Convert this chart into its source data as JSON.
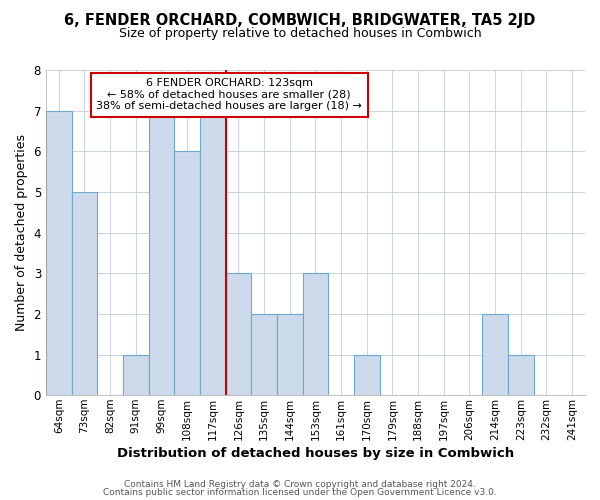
{
  "title": "6, FENDER ORCHARD, COMBWICH, BRIDGWATER, TA5 2JD",
  "subtitle": "Size of property relative to detached houses in Combwich",
  "xlabel": "Distribution of detached houses by size in Combwich",
  "ylabel": "Number of detached properties",
  "bar_labels": [
    "64sqm",
    "73sqm",
    "82sqm",
    "91sqm",
    "99sqm",
    "108sqm",
    "117sqm",
    "126sqm",
    "135sqm",
    "144sqm",
    "153sqm",
    "161sqm",
    "170sqm",
    "179sqm",
    "188sqm",
    "197sqm",
    "206sqm",
    "214sqm",
    "223sqm",
    "232sqm",
    "241sqm"
  ],
  "bar_heights": [
    7,
    5,
    0,
    1,
    7,
    6,
    7,
    3,
    2,
    2,
    3,
    0,
    1,
    0,
    0,
    0,
    0,
    2,
    1,
    0,
    0
  ],
  "bar_color": "#ccdaeb",
  "bar_edge_color": "#6fa8cc",
  "red_line_index": 7,
  "annotation_title": "6 FENDER ORCHARD: 123sqm",
  "annotation_line1": "← 58% of detached houses are smaller (28)",
  "annotation_line2": "38% of semi-detached houses are larger (18) →",
  "annotation_box_color": "#ffffff",
  "annotation_box_edge": "#cc0000",
  "ylim": [
    0,
    8
  ],
  "yticks": [
    0,
    1,
    2,
    3,
    4,
    5,
    6,
    7,
    8
  ],
  "footer_line1": "Contains HM Land Registry data © Crown copyright and database right 2024.",
  "footer_line2": "Contains public sector information licensed under the Open Government Licence v3.0.",
  "background_color": "#ffffff",
  "plot_background": "#ffffff",
  "grid_color": "#c8d4e0"
}
